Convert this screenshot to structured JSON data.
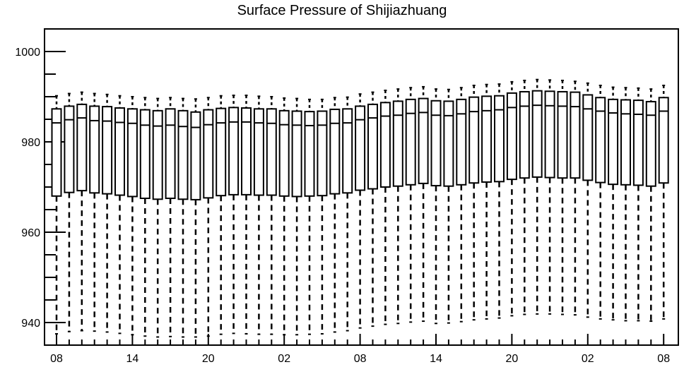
{
  "chart_data": {
    "type": "box",
    "title": "Surface Pressure of Shijiazhuang",
    "xlabel": "",
    "ylabel": "",
    "ylim": [
      935,
      1005
    ],
    "yticks": [
      940,
      960,
      980,
      1000
    ],
    "x_tick_labels": [
      "08",
      "14",
      "20",
      "02",
      "08",
      "14",
      "20",
      "02",
      "08"
    ],
    "x_tick_every": 6,
    "grid": false,
    "boxes": [
      {
        "x": 0,
        "min": 937.5,
        "q1": 968.0,
        "median": 984.2,
        "q3": 987.3,
        "max": 990.2
      },
      {
        "x": 1,
        "min": 938.0,
        "q1": 968.8,
        "median": 984.9,
        "q3": 987.9,
        "max": 990.7
      },
      {
        "x": 2,
        "min": 938.2,
        "q1": 969.2,
        "median": 985.3,
        "q3": 988.3,
        "max": 991.0
      },
      {
        "x": 3,
        "min": 938.1,
        "q1": 968.7,
        "median": 984.7,
        "q3": 987.9,
        "max": 990.7
      },
      {
        "x": 4,
        "min": 937.9,
        "q1": 968.5,
        "median": 984.6,
        "q3": 987.8,
        "max": 990.5
      },
      {
        "x": 5,
        "min": 937.6,
        "q1": 968.2,
        "median": 984.3,
        "q3": 987.5,
        "max": 990.2
      },
      {
        "x": 6,
        "min": 937.3,
        "q1": 967.9,
        "median": 984.1,
        "q3": 987.3,
        "max": 990.0
      },
      {
        "x": 7,
        "min": 937.0,
        "q1": 967.5,
        "median": 983.7,
        "q3": 987.1,
        "max": 989.8
      },
      {
        "x": 8,
        "min": 936.8,
        "q1": 967.3,
        "median": 983.5,
        "q3": 986.9,
        "max": 989.6
      },
      {
        "x": 9,
        "min": 936.9,
        "q1": 967.5,
        "median": 983.7,
        "q3": 987.3,
        "max": 989.8
      },
      {
        "x": 10,
        "min": 936.8,
        "q1": 967.3,
        "median": 983.4,
        "q3": 986.9,
        "max": 989.6
      },
      {
        "x": 11,
        "min": 936.8,
        "q1": 967.2,
        "median": 983.2,
        "q3": 986.6,
        "max": 989.5
      },
      {
        "x": 12,
        "min": 937.0,
        "q1": 967.6,
        "median": 983.8,
        "q3": 987.1,
        "max": 989.8
      },
      {
        "x": 13,
        "min": 937.4,
        "q1": 968.1,
        "median": 984.2,
        "q3": 987.4,
        "max": 990.2
      },
      {
        "x": 14,
        "min": 937.6,
        "q1": 968.3,
        "median": 984.4,
        "q3": 987.6,
        "max": 990.3
      },
      {
        "x": 15,
        "min": 937.5,
        "q1": 968.3,
        "median": 984.4,
        "q3": 987.5,
        "max": 990.3
      },
      {
        "x": 16,
        "min": 937.4,
        "q1": 968.2,
        "median": 984.2,
        "q3": 987.3,
        "max": 990.1
      },
      {
        "x": 17,
        "min": 937.4,
        "q1": 968.2,
        "median": 984.1,
        "q3": 987.3,
        "max": 990.0
      },
      {
        "x": 18,
        "min": 937.3,
        "q1": 968.0,
        "median": 983.8,
        "q3": 986.9,
        "max": 989.7
      },
      {
        "x": 19,
        "min": 937.3,
        "q1": 967.9,
        "median": 983.7,
        "q3": 986.8,
        "max": 989.6
      },
      {
        "x": 20,
        "min": 937.4,
        "q1": 968.0,
        "median": 983.6,
        "q3": 986.7,
        "max": 989.4
      },
      {
        "x": 21,
        "min": 937.5,
        "q1": 968.1,
        "median": 983.7,
        "q3": 986.8,
        "max": 989.4
      },
      {
        "x": 22,
        "min": 937.9,
        "q1": 968.5,
        "median": 984.1,
        "q3": 987.2,
        "max": 989.8
      },
      {
        "x": 23,
        "min": 938.2,
        "q1": 968.7,
        "median": 984.2,
        "q3": 987.3,
        "max": 989.9
      },
      {
        "x": 24,
        "min": 938.8,
        "q1": 969.3,
        "median": 984.9,
        "q3": 987.9,
        "max": 990.6
      },
      {
        "x": 25,
        "min": 939.2,
        "q1": 969.6,
        "median": 985.3,
        "q3": 988.3,
        "max": 991.0
      },
      {
        "x": 26,
        "min": 939.6,
        "q1": 970.0,
        "median": 985.7,
        "q3": 988.7,
        "max": 991.4
      },
      {
        "x": 27,
        "min": 939.8,
        "q1": 970.2,
        "median": 985.9,
        "q3": 989.0,
        "max": 991.7
      },
      {
        "x": 28,
        "min": 940.1,
        "q1": 970.5,
        "median": 986.3,
        "q3": 989.4,
        "max": 992.0
      },
      {
        "x": 29,
        "min": 940.3,
        "q1": 970.8,
        "median": 986.5,
        "q3": 989.6,
        "max": 992.2
      },
      {
        "x": 30,
        "min": 939.8,
        "q1": 970.3,
        "median": 985.9,
        "q3": 989.1,
        "max": 991.7
      },
      {
        "x": 31,
        "min": 939.9,
        "q1": 970.2,
        "median": 985.8,
        "q3": 989.0,
        "max": 991.6
      },
      {
        "x": 32,
        "min": 940.2,
        "q1": 970.5,
        "median": 986.2,
        "q3": 989.4,
        "max": 992.0
      },
      {
        "x": 33,
        "min": 940.6,
        "q1": 970.9,
        "median": 986.7,
        "q3": 989.9,
        "max": 992.5
      },
      {
        "x": 34,
        "min": 940.8,
        "q1": 971.1,
        "median": 986.9,
        "q3": 990.1,
        "max": 992.7
      },
      {
        "x": 35,
        "min": 941.0,
        "q1": 971.2,
        "median": 987.1,
        "q3": 990.2,
        "max": 992.8
      },
      {
        "x": 36,
        "min": 941.5,
        "q1": 971.7,
        "median": 987.6,
        "q3": 990.8,
        "max": 993.3
      },
      {
        "x": 37,
        "min": 941.8,
        "q1": 972.0,
        "median": 987.9,
        "q3": 991.1,
        "max": 993.6
      },
      {
        "x": 38,
        "min": 941.9,
        "q1": 972.2,
        "median": 988.1,
        "q3": 991.3,
        "max": 993.8
      },
      {
        "x": 39,
        "min": 941.9,
        "q1": 972.1,
        "median": 988.0,
        "q3": 991.2,
        "max": 993.7
      },
      {
        "x": 40,
        "min": 941.8,
        "q1": 972.0,
        "median": 987.9,
        "q3": 991.1,
        "max": 993.6
      },
      {
        "x": 41,
        "min": 941.7,
        "q1": 972.0,
        "median": 987.8,
        "q3": 991.0,
        "max": 993.4
      },
      {
        "x": 42,
        "min": 941.2,
        "q1": 971.5,
        "median": 987.3,
        "q3": 990.4,
        "max": 993.0
      },
      {
        "x": 43,
        "min": 940.8,
        "q1": 971.0,
        "median": 986.8,
        "q3": 989.8,
        "max": 992.5
      },
      {
        "x": 44,
        "min": 940.6,
        "q1": 970.6,
        "median": 986.4,
        "q3": 989.4,
        "max": 992.1
      },
      {
        "x": 45,
        "min": 940.4,
        "q1": 970.5,
        "median": 986.2,
        "q3": 989.3,
        "max": 992.0
      },
      {
        "x": 46,
        "min": 940.4,
        "q1": 970.4,
        "median": 986.1,
        "q3": 989.2,
        "max": 991.9
      },
      {
        "x": 47,
        "min": 940.3,
        "q1": 970.2,
        "median": 985.9,
        "q3": 988.9,
        "max": 991.7
      },
      {
        "x": 48,
        "min": 940.8,
        "q1": 970.9,
        "median": 986.8,
        "q3": 989.8,
        "max": 992.5
      }
    ]
  }
}
